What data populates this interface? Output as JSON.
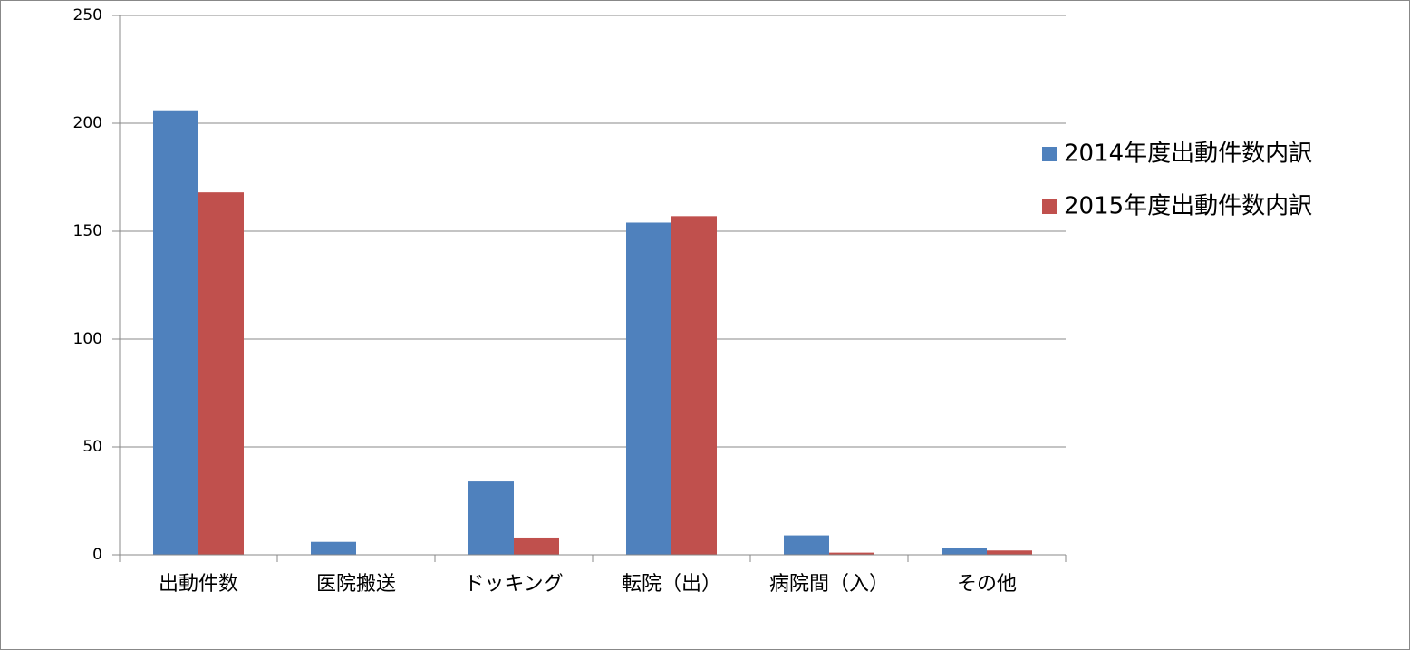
{
  "chart_data": {
    "type": "bar",
    "categories": [
      "出動件数",
      "医院搬送",
      "ドッキング",
      "転院（出）",
      "病院間（入）",
      "その他"
    ],
    "series": [
      {
        "name": "2014年度出動件数内訳",
        "color": "#4f81bd",
        "values": [
          206,
          6,
          34,
          154,
          9,
          3
        ]
      },
      {
        "name": "2015年度出動件数内訳",
        "color": "#c0504d",
        "values": [
          168,
          0,
          8,
          157,
          1,
          2
        ]
      }
    ],
    "ylim": [
      0,
      250
    ],
    "yticks": [
      0,
      50,
      100,
      150,
      200,
      250
    ],
    "grid": true,
    "legend": "right"
  }
}
